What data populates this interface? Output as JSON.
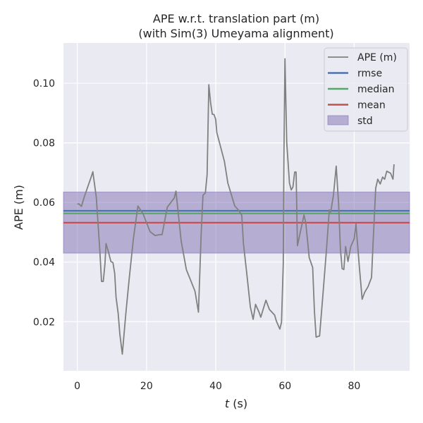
{
  "chart_data": {
    "type": "line",
    "title_line1": "APE w.r.t. translation part (m)",
    "title_line2": "(with Sim(3) Umeyama alignment)",
    "xlabel_var": "t",
    "xlabel_unit": " (s)",
    "ylabel": "APE (m)",
    "xlim": [
      -4,
      96
    ],
    "ylim": [
      0.0035,
      0.1135
    ],
    "xticks": [
      0,
      20,
      40,
      60,
      80
    ],
    "yticks": [
      0.02,
      0.04,
      0.06,
      0.08,
      0.1
    ],
    "ytick_labels": [
      "0.02",
      "0.04",
      "0.06",
      "0.08",
      "0.10"
    ],
    "grid": true,
    "legend_position": "top-right",
    "background": "#eaeaf2",
    "series": [
      {
        "name": "APE (m)",
        "color": "#808080",
        "x": [
          0,
          0.5,
          1.2,
          2,
          3,
          4,
          4.5,
          5.5,
          6.5,
          7,
          7.5,
          8,
          8.3,
          9,
          9.7,
          10.3,
          10.8,
          11.2,
          11.8,
          12.3,
          13,
          14,
          15,
          16.2,
          17.5,
          19,
          21,
          22.5,
          23.8,
          24.5,
          26,
          28,
          28.5,
          30,
          31.5,
          34,
          35,
          35.8,
          36.3,
          37,
          37.5,
          38,
          38.5,
          39,
          39.5,
          40,
          40.3,
          42.5,
          43.5,
          45.5,
          46.5,
          47.5,
          48,
          49,
          50,
          50.8,
          51.5,
          52.5,
          53,
          54.5,
          55.5,
          57,
          57.5,
          58.5,
          59,
          59.5,
          59.7,
          60,
          60.5,
          61.3,
          61.8,
          62.3,
          62.8,
          63.2,
          63.6,
          65.5,
          66,
          67,
          68,
          68.5,
          69,
          70,
          71,
          72,
          72.8,
          73.2,
          74,
          74.8,
          75.5,
          76,
          76.5,
          77,
          77.5,
          78.2,
          79,
          80,
          80.5,
          81.5,
          82.3,
          83,
          84,
          85,
          85.5,
          86.2,
          86.8,
          87.5,
          88.2,
          88.8,
          89.4,
          90.5,
          91.2,
          91.5
        ],
        "y": [
          0.0595,
          0.0595,
          0.0587,
          0.0618,
          0.0652,
          0.0685,
          0.0703,
          0.0617,
          0.0438,
          0.0335,
          0.0335,
          0.0395,
          0.0462,
          0.0434,
          0.0402,
          0.0398,
          0.0362,
          0.0282,
          0.0228,
          0.0158,
          0.0091,
          0.0225,
          0.0345,
          0.0478,
          0.0588,
          0.0562,
          0.0502,
          0.0489,
          0.0492,
          0.0492,
          0.0584,
          0.0615,
          0.0638,
          0.0472,
          0.0375,
          0.0302,
          0.0232,
          0.0498,
          0.0624,
          0.0632,
          0.0694,
          0.0995,
          0.0935,
          0.0896,
          0.0895,
          0.0878,
          0.0835,
          0.0738,
          0.0665,
          0.0588,
          0.0575,
          0.0557,
          0.0462,
          0.0358,
          0.0249,
          0.0208,
          0.0258,
          0.0232,
          0.0215,
          0.0272,
          0.0241,
          0.0222,
          0.0202,
          0.0175,
          0.0198,
          0.0395,
          0.0765,
          0.1082,
          0.0802,
          0.0665,
          0.0642,
          0.0652,
          0.0702,
          0.0702,
          0.0455,
          0.0558,
          0.0532,
          0.0415,
          0.0382,
          0.0235,
          0.0148,
          0.0152,
          0.0298,
          0.0445,
          0.0575,
          0.0568,
          0.0625,
          0.0722,
          0.0595,
          0.0445,
          0.0378,
          0.0375,
          0.0452,
          0.0402,
          0.0452,
          0.0478,
          0.0528,
          0.0382,
          0.0275,
          0.0298,
          0.0318,
          0.0348,
          0.0475,
          0.0648,
          0.0678,
          0.0662,
          0.0685,
          0.0678,
          0.0705,
          0.0698,
          0.0678,
          0.0728
        ]
      },
      {
        "name": "rmse",
        "color": "#4c72b0",
        "value": 0.0572
      },
      {
        "name": "median",
        "color": "#55a868",
        "value": 0.0563
      },
      {
        "name": "mean",
        "color": "#c44e52",
        "value": 0.0532
      },
      {
        "name": "std",
        "color": "#8172b2",
        "range": [
          0.043,
          0.0635
        ]
      }
    ]
  }
}
